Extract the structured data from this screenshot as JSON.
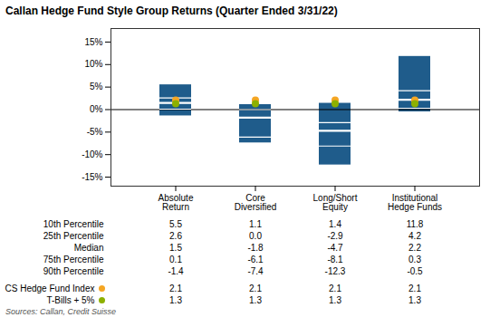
{
  "chart_data": {
    "type": "box",
    "title": "Callan Hedge Fund Style Group Returns (Quarter Ended 3/31/22)",
    "source": "Sources: Callan, Credit Suisse",
    "categories": [
      "Absolute\nReturn",
      "Core\nDiversified",
      "Long/Short\nEquity",
      "Institutional\nHedge Funds"
    ],
    "color": "#1F5C8B",
    "percentiles": [
      {
        "name": "10th Percentile",
        "values": [
          5.5,
          1.1,
          1.4,
          11.8
        ],
        "value_labels": [
          "5.5",
          "1.1",
          "1.4",
          "11.8"
        ]
      },
      {
        "name": "25th Percentile",
        "values": [
          2.6,
          0.0,
          -2.9,
          4.2
        ],
        "value_labels": [
          "2.6",
          "0.0",
          "-2.9",
          "4.2"
        ]
      },
      {
        "name": "Median",
        "values": [
          1.5,
          -1.8,
          -4.7,
          2.2
        ],
        "value_labels": [
          "1.5",
          "-1.8",
          "-4.7",
          "2.2"
        ]
      },
      {
        "name": "75th Percentile",
        "values": [
          0.1,
          -6.1,
          -8.1,
          0.3
        ],
        "value_labels": [
          "0.1",
          "-6.1",
          "-8.1",
          "0.3"
        ]
      },
      {
        "name": "90th Percentile",
        "values": [
          -1.4,
          -7.4,
          -12.3,
          -0.5
        ],
        "value_labels": [
          "-1.4",
          "-7.4",
          "-12.3",
          "-0.5"
        ]
      }
    ],
    "series": [
      {
        "name": "CS Hedge Fund Index",
        "type": "scatter",
        "marker": "circle",
        "color": "#F5A623",
        "values": [
          2.1,
          2.1,
          2.1,
          2.1
        ],
        "value_labels": [
          "2.1",
          "2.1",
          "2.1",
          "2.1"
        ]
      },
      {
        "name": "T-Bills + 5%",
        "type": "scatter",
        "marker": "circle",
        "color": "#8DB000",
        "values": [
          1.3,
          1.3,
          1.3,
          1.3
        ],
        "value_labels": [
          "1.3",
          "1.3",
          "1.3",
          "1.3"
        ]
      }
    ],
    "ylim": [
      -17,
      18
    ],
    "yticks": [
      {
        "value": -15,
        "label": "-15%"
      },
      {
        "value": -10,
        "label": "-10%"
      },
      {
        "value": -5,
        "label": "-5%"
      },
      {
        "value": 0,
        "label": "0%"
      },
      {
        "value": 5,
        "label": "5%"
      },
      {
        "value": 10,
        "label": "10%"
      },
      {
        "value": 15,
        "label": "15%"
      }
    ],
    "grid": false
  }
}
